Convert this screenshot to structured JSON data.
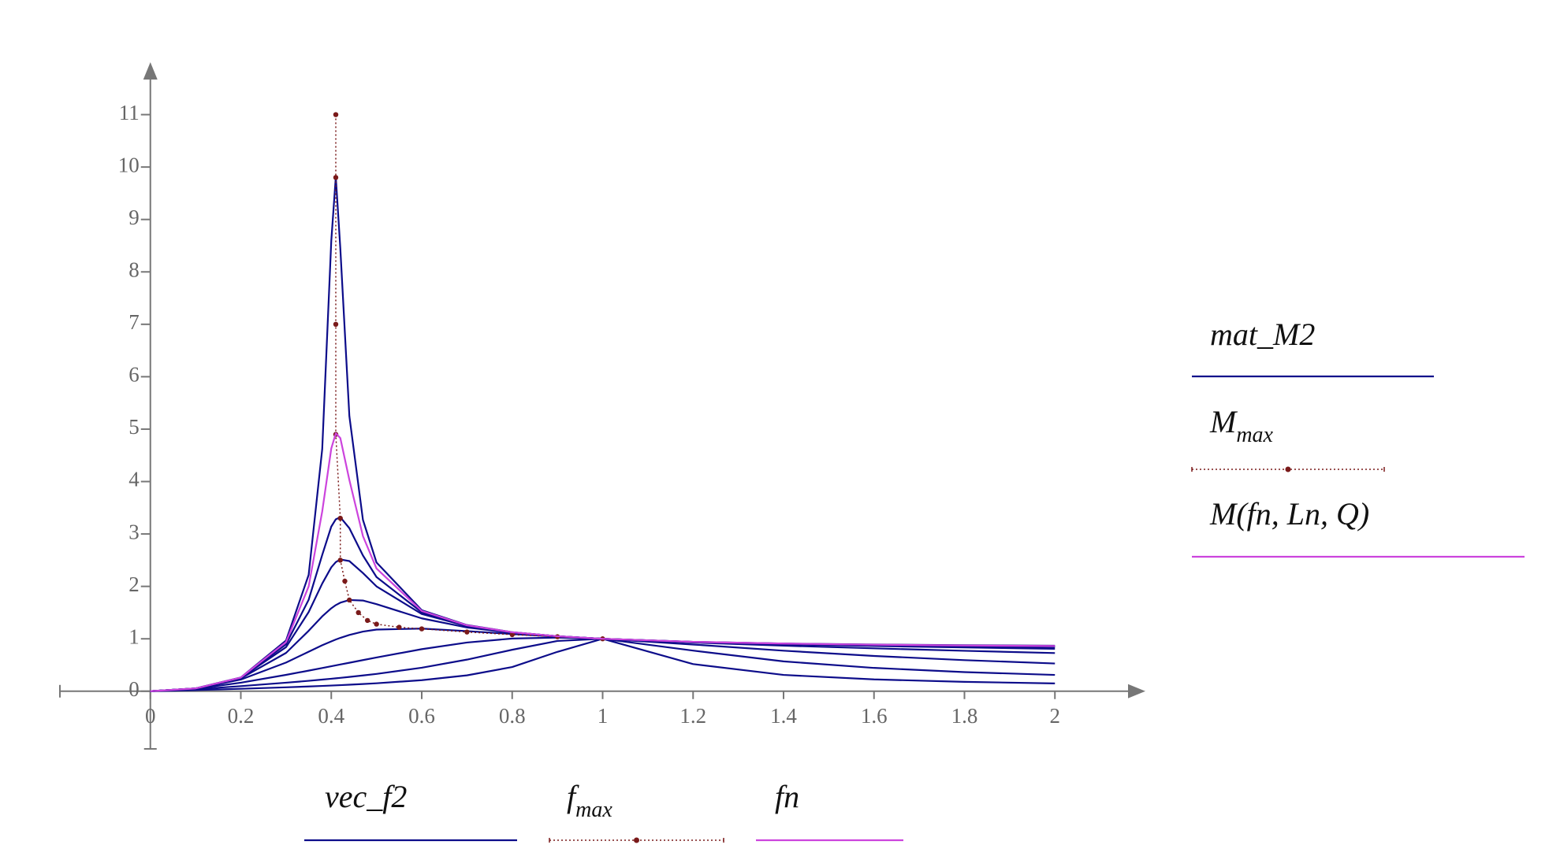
{
  "chart_data": {
    "type": "line",
    "xlim": [
      -0.2,
      2.2
    ],
    "ylim": [
      -1.1,
      12
    ],
    "xticks": [
      0,
      0.2,
      0.4,
      0.6,
      0.8,
      1,
      1.2,
      1.4,
      1.6,
      1.8,
      2
    ],
    "yticks": [
      0,
      1,
      2,
      3,
      4,
      5,
      6,
      7,
      8,
      9,
      10,
      11
    ],
    "x": [
      0,
      0.1,
      0.2,
      0.3,
      0.35,
      0.38,
      0.4,
      0.41,
      0.42,
      0.44,
      0.47,
      0.5,
      0.6,
      0.7,
      0.8,
      0.9,
      1,
      1.2,
      1.4,
      1.6,
      1.8,
      2
    ],
    "series": [
      {
        "name": "mat_M2",
        "x_name": "vec_f2",
        "color": "#0c0c8a",
        "style": "solid",
        "curves": [
          [
            0,
            0.0532,
            0.2626,
            0.9675,
            2.22,
            4.62,
            8.59,
            9.81,
            8.45,
            5.25,
            3.27,
            2.457,
            1.546,
            1.262,
            1.126,
            1.049,
            1,
            0.942,
            0.91,
            0.891,
            0.877,
            0.868
          ],
          [
            0,
            0.053,
            0.2586,
            0.894,
            1.745,
            2.6,
            3.14,
            3.28,
            3.32,
            3.11,
            2.59,
            2.179,
            1.506,
            1.251,
            1.124,
            1.049,
            1,
            0.941,
            0.907,
            0.884,
            0.867,
            0.853
          ],
          [
            0,
            0.0529,
            0.2551,
            0.841,
            1.51,
            2.054,
            2.364,
            2.463,
            2.514,
            2.483,
            2.255,
            2.0,
            1.473,
            1.242,
            1.121,
            1.048,
            1,
            0.94,
            0.904,
            0.878,
            0.858,
            0.841
          ],
          [
            0,
            0.0525,
            0.2461,
            0.731,
            1.153,
            1.428,
            1.582,
            1.643,
            1.689,
            1.74,
            1.73,
            1.661,
            1.39,
            1.217,
            1.114,
            1.047,
            1,
            0.937,
            0.895,
            0.863,
            0.835,
            0.81
          ],
          [
            0,
            0.0514,
            0.2225,
            0.547,
            0.754,
            0.877,
            0.951,
            0.986,
            1.018,
            1.074,
            1.137,
            1.176,
            1.195,
            1.147,
            1.092,
            1.043,
            1,
            0.929,
            0.869,
            0.818,
            0.771,
            0.728
          ],
          [
            0,
            0.0471,
            0.1633,
            0.3124,
            0.393,
            0.443,
            0.476,
            0.493,
            0.51,
            0.543,
            0.594,
            0.644,
            0.802,
            0.929,
            1.005,
            1.024,
            1,
            0.891,
            0.773,
            0.673,
            0.593,
            0.529
          ],
          [
            0,
            0.0366,
            0.0969,
            0.1625,
            0.1987,
            0.2219,
            0.2381,
            0.2464,
            0.2549,
            0.2725,
            0.3004,
            0.3304,
            0.4487,
            0.603,
            0.791,
            0.959,
            1,
            0.775,
            0.569,
            0.445,
            0.365,
            0.311
          ],
          [
            0,
            0.0211,
            0.0466,
            0.0747,
            0.0906,
            0.1009,
            0.1082,
            0.112,
            0.1159,
            0.124,
            0.137,
            0.1512,
            0.2111,
            0.3028,
            0.4609,
            0.7514,
            1,
            0.518,
            0.311,
            0.2255,
            0.1788,
            0.149
          ]
        ]
      },
      {
        "name": "M",
        "name_sub": "max",
        "x_name": "f",
        "x_name_sub": "max",
        "color": "#7a1a1a",
        "style": "dotted",
        "x": [
          0.41,
          0.41,
          0.41,
          0.41,
          0.42,
          0.42,
          0.43,
          0.44,
          0.46,
          0.48,
          0.5,
          0.55,
          0.6,
          0.7,
          0.8,
          0.9,
          1
        ],
        "values": [
          11,
          9.8,
          7,
          4.9,
          3.3,
          2.5,
          2.1,
          1.74,
          1.5,
          1.35,
          1.28,
          1.22,
          1.19,
          1.13,
          1.08,
          1.04,
          1
        ]
      },
      {
        "name": "M(fn, Ln, Q)",
        "x_name": "fn",
        "color": "#cc44dd",
        "style": "solid",
        "values": [
          0,
          0.0531,
          0.2611,
          0.938,
          2.0,
          3.43,
          4.63,
          4.92,
          4.83,
          4.03,
          2.96,
          2.341,
          1.531,
          1.258,
          1.125,
          1.049,
          1,
          0.942,
          0.909,
          0.888,
          0.873,
          0.862
        ]
      }
    ]
  }
}
